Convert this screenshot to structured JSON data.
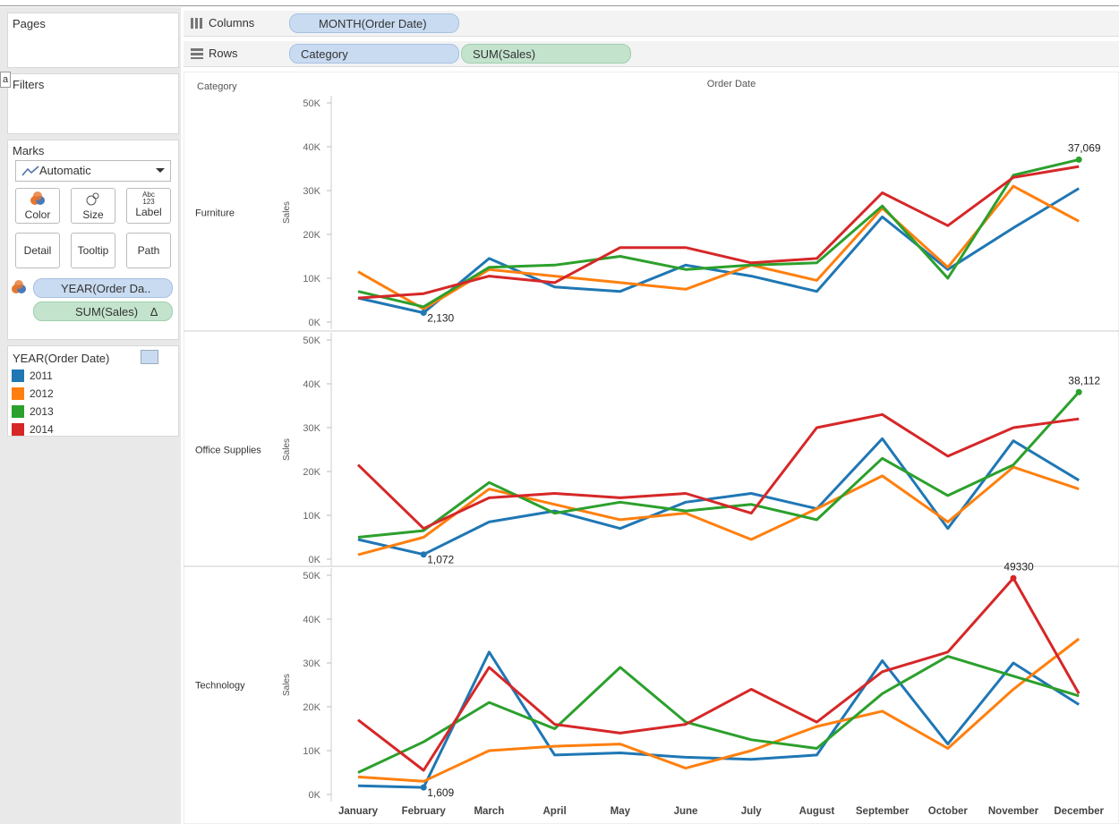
{
  "ui": {
    "pages": "Pages",
    "filters": "Filters",
    "tooltip_fragment": "a",
    "marks": {
      "title": "Marks",
      "mark_type": "Automatic",
      "buttons": [
        "Color",
        "Size",
        "Label",
        "Detail",
        "Tooltip",
        "Path"
      ],
      "label_icon": [
        "Abc",
        "123"
      ],
      "fields": [
        "YEAR(Order Da..",
        "SUM(Sales)"
      ],
      "sum_sales_icon": "Δ"
    },
    "shelves": {
      "columns": {
        "label": "Columns",
        "pills": [
          "MONTH(Order Date)"
        ]
      },
      "rows": {
        "label": "Rows",
        "pills": [
          "Category",
          "SUM(Sales)"
        ]
      }
    }
  },
  "chart_data": {
    "type": "line",
    "row_header": "Category",
    "column_header": "Order Date",
    "grid": false,
    "categories": [
      "January",
      "February",
      "March",
      "April",
      "May",
      "June",
      "July",
      "August",
      "September",
      "October",
      "November",
      "December"
    ],
    "legend": {
      "title": "YEAR(Order Date)",
      "position": "left"
    },
    "series": [
      {
        "name": "2011",
        "color": "#1f77b4"
      },
      {
        "name": "2012",
        "color": "#ff7f0e"
      },
      {
        "name": "2013",
        "color": "#2ca02c"
      },
      {
        "name": "2014",
        "color": "#d62728"
      }
    ],
    "panels": [
      {
        "name": "Furniture",
        "y_label": "Sales",
        "ylim": [
          0,
          50000
        ],
        "yticks": [
          {
            "value": 0,
            "label": "0K"
          },
          {
            "value": 10000,
            "label": "10K"
          },
          {
            "value": 20000,
            "label": "20K"
          },
          {
            "value": 30000,
            "label": "30K"
          },
          {
            "value": 40000,
            "label": "40K"
          },
          {
            "value": 50000,
            "label": "50K"
          }
        ],
        "values": [
          [
            5500,
            2130,
            14500,
            8000,
            7000,
            13000,
            10500,
            7000,
            24000,
            12000,
            21500,
            30500
          ],
          [
            11500,
            3000,
            12000,
            10500,
            9000,
            7500,
            13000,
            9500,
            26000,
            12500,
            31000,
            23000
          ],
          [
            7000,
            3500,
            12500,
            13000,
            15000,
            12000,
            13000,
            13500,
            26500,
            10000,
            33500,
            37069
          ],
          [
            5500,
            6500,
            10500,
            9000,
            17000,
            17000,
            13500,
            14500,
            29500,
            22000,
            33000,
            35500
          ]
        ],
        "value_labels": [
          [
            null,
            "2,130",
            null,
            null,
            null,
            null,
            null,
            null,
            null,
            null,
            null,
            null
          ],
          [
            null,
            null,
            null,
            null,
            null,
            null,
            null,
            null,
            null,
            null,
            null,
            null
          ],
          [
            null,
            null,
            null,
            null,
            null,
            null,
            null,
            null,
            null,
            null,
            null,
            "37,069"
          ],
          [
            null,
            null,
            null,
            null,
            null,
            null,
            null,
            null,
            null,
            null,
            null,
            null
          ]
        ]
      },
      {
        "name": "Office Supplies",
        "y_label": "Sales",
        "ylim": [
          0,
          50000
        ],
        "yticks": [
          {
            "value": 0,
            "label": "0K"
          },
          {
            "value": 10000,
            "label": "10K"
          },
          {
            "value": 20000,
            "label": "20K"
          },
          {
            "value": 30000,
            "label": "30K"
          },
          {
            "value": 40000,
            "label": "40K"
          },
          {
            "value": 50000,
            "label": "50K"
          }
        ],
        "values": [
          [
            4500,
            1072,
            8500,
            11000,
            7000,
            13000,
            15000,
            11500,
            27500,
            7000,
            27000,
            18000
          ],
          [
            1000,
            5000,
            16000,
            12500,
            9000,
            10500,
            4500,
            11500,
            19000,
            8500,
            21000,
            16000
          ],
          [
            5000,
            6500,
            17500,
            10500,
            13000,
            11000,
            12500,
            9000,
            23000,
            14500,
            21500,
            38112
          ],
          [
            21500,
            7000,
            14000,
            15000,
            14000,
            15000,
            10500,
            30000,
            33000,
            23500,
            30000,
            32000
          ]
        ],
        "value_labels": [
          [
            null,
            "1,072",
            null,
            null,
            null,
            null,
            null,
            null,
            null,
            null,
            null,
            null
          ],
          [
            null,
            null,
            null,
            null,
            null,
            null,
            null,
            null,
            null,
            null,
            null,
            null
          ],
          [
            null,
            null,
            null,
            null,
            null,
            null,
            null,
            null,
            null,
            null,
            null,
            "38,112"
          ],
          [
            null,
            null,
            null,
            null,
            null,
            null,
            null,
            null,
            null,
            null,
            null,
            null
          ]
        ]
      },
      {
        "name": "Technology",
        "y_label": "Sales",
        "ylim": [
          0,
          50000
        ],
        "yticks": [
          {
            "value": 0,
            "label": "0K"
          },
          {
            "value": 10000,
            "label": "10K"
          },
          {
            "value": 20000,
            "label": "20K"
          },
          {
            "value": 30000,
            "label": "30K"
          },
          {
            "value": 40000,
            "label": "40K"
          },
          {
            "value": 50000,
            "label": "50K"
          }
        ],
        "values": [
          [
            2000,
            1609,
            32500,
            9000,
            9500,
            8500,
            8000,
            9000,
            30500,
            11500,
            30000,
            20500
          ],
          [
            4000,
            3000,
            10000,
            11000,
            11500,
            6000,
            10000,
            15500,
            19000,
            10500,
            24000,
            35500
          ],
          [
            5000,
            12000,
            21000,
            15000,
            29000,
            16500,
            12500,
            10500,
            23000,
            31500,
            27000,
            22500
          ],
          [
            17000,
            5500,
            29000,
            16000,
            14000,
            16000,
            24000,
            16500,
            28000,
            32500,
            49330,
            23000
          ]
        ],
        "value_labels": [
          [
            null,
            "1,609",
            null,
            null,
            null,
            null,
            null,
            null,
            null,
            null,
            null,
            null
          ],
          [
            null,
            null,
            null,
            null,
            null,
            null,
            null,
            null,
            null,
            null,
            null,
            null
          ],
          [
            null,
            null,
            null,
            null,
            null,
            null,
            null,
            null,
            null,
            null,
            null,
            null
          ],
          [
            null,
            null,
            null,
            null,
            null,
            null,
            null,
            null,
            null,
            null,
            49330,
            null
          ]
        ]
      }
    ]
  }
}
